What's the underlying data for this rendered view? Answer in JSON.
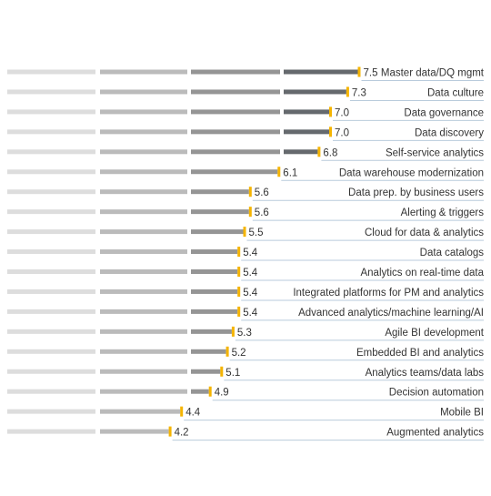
{
  "chart_data": {
    "type": "bar",
    "orientation": "horizontal",
    "categories": [
      "Master data/DQ mgmt",
      "Data culture",
      "Data governance",
      "Data discovery",
      "Self-service analytics",
      "Data warehouse modernization",
      "Data prep. by business users",
      "Alerting & triggers",
      "Cloud for data & analytics",
      "Data catalogs",
      "Analytics on real-time data",
      "Integrated platforms for PM and analytics",
      "Advanced analytics/machine learning/AI",
      "Agile BI development",
      "Embedded BI and analytics",
      "Analytics teams/data labs",
      "Decision automation",
      "Mobile BI",
      "Augmented analytics"
    ],
    "values": [
      7.5,
      7.3,
      7.0,
      7.0,
      6.8,
      6.1,
      5.6,
      5.6,
      5.5,
      5.4,
      5.4,
      5.4,
      5.4,
      5.3,
      5.2,
      5.1,
      4.9,
      4.4,
      4.2
    ],
    "value_labels": [
      "7.5",
      "7.3",
      "7.0",
      "7.0",
      "6.8",
      "6.1",
      "5.6",
      "5.6",
      "5.5",
      "5.4",
      "5.4",
      "5.4",
      "5.4",
      "5.3",
      "5.2",
      "5.1",
      "4.9",
      "4.4",
      "4.2"
    ],
    "xlim": [
      1,
      10
    ],
    "segment_bounds": [
      1,
      3,
      5,
      7,
      10
    ],
    "colors": {
      "segments": [
        "#dddddd",
        "#bbbbbb",
        "#959595",
        "#65696d"
      ],
      "marker": "#f5b400",
      "divider": "#b9cbdc",
      "text": "#333333"
    },
    "grid": false,
    "legend": "none"
  }
}
